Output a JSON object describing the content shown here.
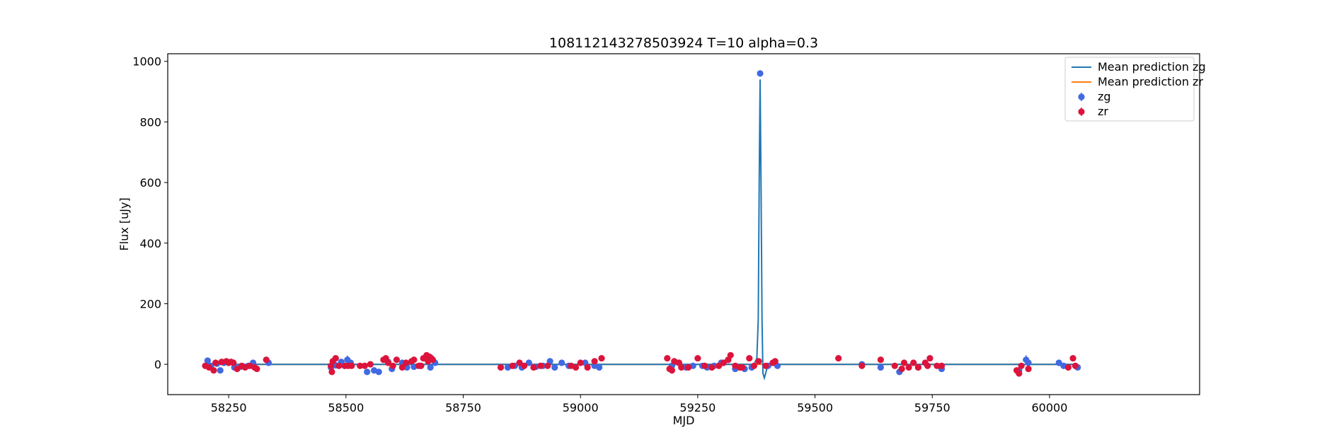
{
  "chart_data": {
    "type": "scatter",
    "title": "108112143278503924 T=10 alpha=0.3",
    "xlabel": "MJD",
    "ylabel": "Flux [uJy]",
    "xlim": [
      58120,
      60320
    ],
    "ylim": [
      -100,
      1025
    ],
    "xticks": [
      58250,
      58500,
      58750,
      59000,
      59250,
      59500,
      59750,
      60000
    ],
    "yticks": [
      0,
      200,
      400,
      600,
      800,
      1000
    ],
    "grid": false,
    "legend_position": "top-right",
    "colors": {
      "zg": "#4169e1",
      "zr": "#dc143c",
      "pred_zg": "#1f77b4",
      "pred_zr": "#ff7f0e"
    },
    "legend": [
      {
        "label": "Mean prediction zg",
        "kind": "line",
        "color": "#1f77b4"
      },
      {
        "label": "Mean prediction zr",
        "kind": "line",
        "color": "#ff7f0e"
      },
      {
        "label": "zg",
        "kind": "point",
        "color": "#4169e1"
      },
      {
        "label": "zr",
        "kind": "point",
        "color": "#dc143c"
      }
    ],
    "series": [
      {
        "name": "Mean prediction zg",
        "kind": "line",
        "color": "#1f77b4",
        "x": [
          58200,
          59370,
          59376,
          59379,
          59381,
          59383,
          59385,
          59387,
          59389,
          59392,
          59400,
          60060
        ],
        "y": [
          0,
          0,
          20,
          150,
          600,
          940,
          600,
          150,
          -30,
          -45,
          0,
          0
        ]
      },
      {
        "name": "Mean prediction zr",
        "kind": "line",
        "color": "#ff7f0e",
        "x": [
          58200,
          60060
        ],
        "y": [
          0,
          0
        ]
      },
      {
        "name": "zg",
        "kind": "points",
        "color": "#4169e1",
        "x": [
          58205,
          58212,
          58225,
          58232,
          58240,
          58262,
          58275,
          58292,
          58302,
          58335,
          58468,
          58478,
          58490,
          58497,
          58503,
          58510,
          58545,
          58560,
          58570,
          58590,
          58598,
          58620,
          58630,
          58645,
          58660,
          58680,
          58690,
          58845,
          58860,
          58875,
          58890,
          58905,
          58920,
          58935,
          58945,
          58960,
          58975,
          59010,
          59030,
          59040,
          59195,
          59210,
          59225,
          59240,
          59260,
          59270,
          59285,
          59300,
          59315,
          59330,
          59350,
          59365,
          59383,
          59400,
          59420,
          59600,
          59640,
          59680,
          59720,
          59770,
          59935,
          59950,
          59955,
          60020,
          60030,
          60060
        ],
        "y": [
          12,
          -5,
          2,
          -20,
          5,
          -10,
          -8,
          -5,
          5,
          5,
          -10,
          -3,
          8,
          -5,
          15,
          5,
          -25,
          -20,
          -25,
          8,
          -15,
          5,
          -10,
          -8,
          -5,
          -10,
          5,
          -10,
          -5,
          -10,
          5,
          -8,
          -5,
          10,
          -10,
          5,
          -5,
          5,
          -5,
          -10,
          -5,
          5,
          -10,
          -5,
          -5,
          -10,
          -5,
          5,
          15,
          -15,
          -15,
          -10,
          960,
          -5,
          -5,
          0,
          -10,
          -25,
          -10,
          -15,
          -20,
          15,
          5,
          5,
          -5,
          -10
        ],
        "yerr": [
          6,
          5,
          5,
          5,
          5,
          5,
          5,
          5,
          5,
          5,
          5,
          5,
          5,
          5,
          14,
          5,
          5,
          5,
          5,
          5,
          5,
          5,
          5,
          5,
          5,
          5,
          5,
          5,
          5,
          5,
          5,
          5,
          5,
          5,
          5,
          5,
          5,
          5,
          5,
          5,
          5,
          5,
          5,
          5,
          5,
          5,
          5,
          5,
          5,
          5,
          5,
          5,
          8,
          5,
          5,
          5,
          5,
          5,
          5,
          5,
          5,
          15,
          5,
          5,
          5,
          5
        ]
      },
      {
        "name": "zr",
        "kind": "points",
        "color": "#dc143c",
        "x": [
          58200,
          58208,
          58218,
          58222,
          58235,
          58245,
          58250,
          58255,
          58260,
          58268,
          58278,
          58285,
          58295,
          58305,
          58310,
          58330,
          58468,
          58470,
          58472,
          58478,
          58485,
          58498,
          58505,
          58512,
          58530,
          58540,
          58552,
          58580,
          58585,
          58590,
          58600,
          58608,
          58620,
          58628,
          58640,
          58645,
          58655,
          58660,
          58665,
          58672,
          58675,
          58678,
          58682,
          58685,
          58830,
          58855,
          58870,
          58880,
          58900,
          58915,
          58930,
          58980,
          58990,
          59000,
          59015,
          59030,
          59045,
          59185,
          59190,
          59195,
          59200,
          59210,
          59215,
          59230,
          59250,
          59265,
          59280,
          59295,
          59305,
          59315,
          59320,
          59330,
          59340,
          59345,
          59360,
          59370,
          59380,
          59395,
          59410,
          59415,
          59550,
          59600,
          59640,
          59670,
          59685,
          59690,
          59700,
          59710,
          59720,
          59735,
          59740,
          59745,
          59760,
          59770,
          59930,
          59935,
          59940,
          59955,
          60040,
          60050,
          60055
        ],
        "y": [
          -5,
          -10,
          -20,
          5,
          8,
          10,
          5,
          8,
          5,
          -15,
          -5,
          -10,
          -5,
          -10,
          -15,
          15,
          -5,
          -25,
          10,
          20,
          -5,
          -5,
          -5,
          -5,
          -5,
          -5,
          0,
          15,
          20,
          5,
          -5,
          15,
          -10,
          5,
          10,
          15,
          -5,
          -5,
          20,
          30,
          10,
          25,
          20,
          15,
          -10,
          -5,
          5,
          -5,
          -10,
          -5,
          -5,
          -5,
          -10,
          5,
          -10,
          10,
          20,
          20,
          -15,
          -20,
          10,
          5,
          -10,
          -10,
          20,
          -5,
          -10,
          -5,
          5,
          15,
          30,
          -5,
          -10,
          -10,
          20,
          -5,
          10,
          -5,
          5,
          10,
          20,
          -5,
          15,
          -5,
          -15,
          5,
          -10,
          5,
          -10,
          5,
          -5,
          20,
          -5,
          -5,
          -20,
          -30,
          -5,
          -15,
          -10,
          20,
          -5
        ],
        "yerr": [
          5,
          5,
          5,
          5,
          5,
          5,
          5,
          5,
          5,
          5,
          5,
          5,
          5,
          5,
          5,
          5,
          5,
          5,
          5,
          5,
          5,
          5,
          5,
          5,
          5,
          5,
          5,
          5,
          5,
          5,
          5,
          5,
          5,
          5,
          5,
          5,
          5,
          5,
          5,
          5,
          5,
          5,
          5,
          5,
          5,
          5,
          5,
          5,
          5,
          5,
          5,
          5,
          5,
          5,
          5,
          5,
          5,
          5,
          5,
          5,
          5,
          5,
          5,
          5,
          5,
          5,
          5,
          5,
          5,
          5,
          5,
          5,
          5,
          5,
          5,
          5,
          5,
          5,
          5,
          5,
          5,
          5,
          5,
          5,
          5,
          5,
          5,
          5,
          5,
          5,
          5,
          5,
          5,
          5,
          5,
          5,
          5,
          5,
          5,
          5,
          5
        ]
      }
    ]
  }
}
